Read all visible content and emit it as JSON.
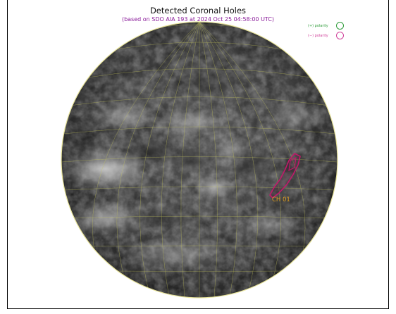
{
  "figure": {
    "title": "Detected Coronal Holes",
    "subtitle": "(based on SDO AIA 193 at 2024 Oct 25 04:58:00 UTC)"
  },
  "legend": {
    "items": [
      {
        "label": "(+) polarity",
        "color": "#2e9c3a"
      },
      {
        "label": "(−) polarity",
        "color": "#d0409a"
      }
    ]
  },
  "coronal_holes": [
    {
      "label": "CH 01",
      "polarity": "negative",
      "outline_color": "#c2186a",
      "label_color": "#e0a020"
    }
  ],
  "colors": {
    "grid": "#c8c85a",
    "limb": "#e8e49a",
    "title": "#111111",
    "subtitle": "#8a1c9a"
  }
}
